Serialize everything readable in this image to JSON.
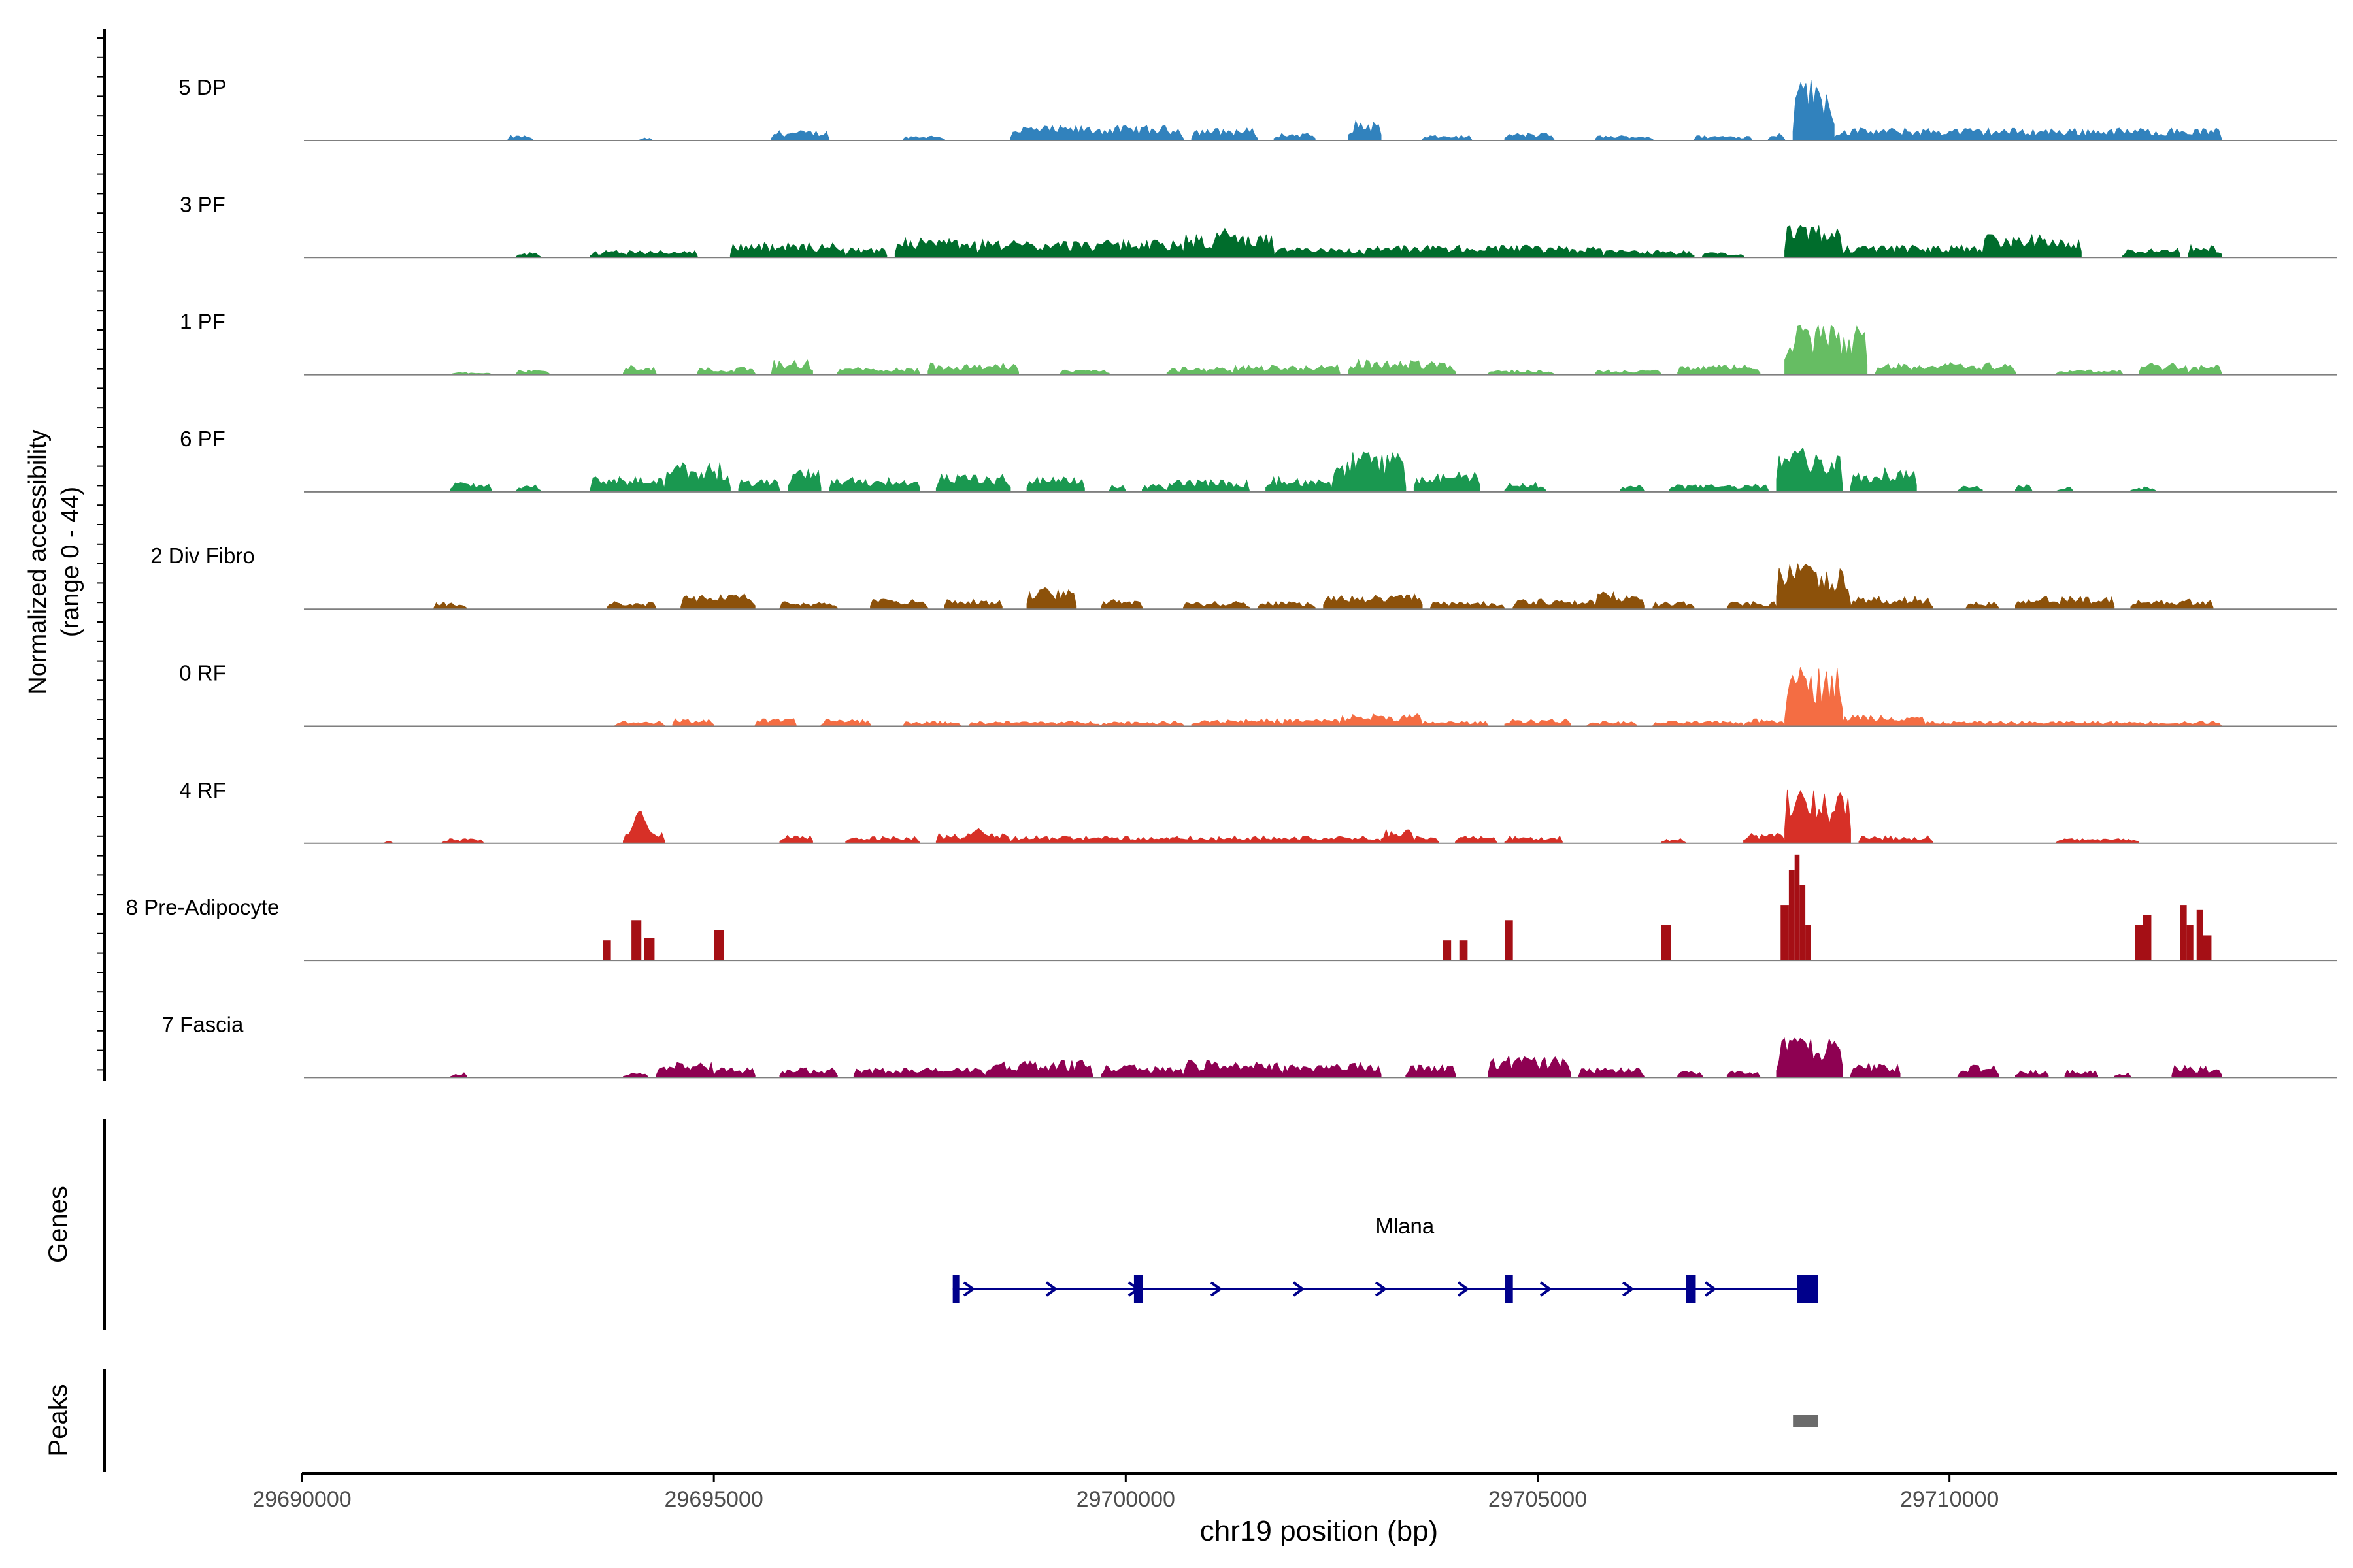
{
  "chart_data": {
    "type": "area",
    "chromosome": "chr19",
    "xlabel": "chr19 position (bp)",
    "xlim": [
      29690000,
      29714700
    ],
    "xticks": [
      29690000,
      29695000,
      29700000,
      29705000,
      29710000
    ],
    "xtick_labels": [
      "29690000",
      "29695000",
      "29700000",
      "29705000",
      "29710000"
    ],
    "coverage": {
      "ylabel_line1": "Normalized accessibility",
      "ylabel_line2": "(range 0 - 44)",
      "yrange": [
        0,
        44
      ],
      "tracks": [
        {
          "name": "5 DP",
          "color": "#3182bd",
          "max": 44,
          "segments": [
            [
              29692500,
              29692800,
              2
            ],
            [
              29694100,
              29694250,
              1
            ],
            [
              29695700,
              29696400,
              4
            ],
            [
              29697300,
              29697800,
              2
            ],
            [
              29698600,
              29700700,
              6
            ],
            [
              29700800,
              29701600,
              5
            ],
            [
              29701800,
              29702300,
              3
            ],
            [
              29702700,
              29703100,
              8
            ],
            [
              29703600,
              29704200,
              2
            ],
            [
              29704600,
              29705200,
              3
            ],
            [
              29705700,
              29706400,
              2
            ],
            [
              29706900,
              29707600,
              2
            ],
            [
              29707800,
              29708000,
              3
            ],
            [
              29708100,
              29708600,
              25
            ],
            [
              29708600,
              29713300,
              5
            ]
          ],
          "peaks": [
            [
              29708200,
              25
            ],
            [
              29703100,
              8
            ]
          ]
        },
        {
          "name": "3 PF",
          "color": "#006d2c",
          "max": 44,
          "segments": [
            [
              29692600,
              29692900,
              2
            ],
            [
              29693500,
              29694800,
              3
            ],
            [
              29695200,
              29696600,
              6
            ],
            [
              29696600,
              29697100,
              4
            ],
            [
              29697200,
              29698200,
              8
            ],
            [
              29698200,
              29700700,
              7
            ],
            [
              29700700,
              29701800,
              10
            ],
            [
              29701800,
              29702900,
              4
            ],
            [
              29702900,
              29705800,
              5
            ],
            [
              29705800,
              29706900,
              3
            ],
            [
              29707000,
              29707500,
              2
            ],
            [
              29708000,
              29708700,
              13
            ],
            [
              29708700,
              29710400,
              5
            ],
            [
              29710400,
              29711600,
              9
            ],
            [
              29712100,
              29712800,
              4
            ],
            [
              29712900,
              29713300,
              5
            ]
          ],
          "peaks": [
            [
              29708200,
              13
            ],
            [
              29701200,
              12
            ],
            [
              29710500,
              11
            ]
          ]
        },
        {
          "name": "1 PF",
          "color": "#66bd63",
          "max": 44,
          "segments": [
            [
              29691800,
              29692300,
              1
            ],
            [
              29692600,
              29693000,
              2
            ],
            [
              29693900,
              29694300,
              4
            ],
            [
              29694800,
              29695500,
              3
            ],
            [
              29695700,
              29696200,
              6
            ],
            [
              29696500,
              29697500,
              3
            ],
            [
              29697600,
              29698700,
              5
            ],
            [
              29699200,
              29699800,
              2
            ],
            [
              29700500,
              29701300,
              3
            ],
            [
              29701300,
              29702600,
              4
            ],
            [
              29702700,
              29704000,
              6
            ],
            [
              29704400,
              29705200,
              2
            ],
            [
              29705700,
              29706500,
              2
            ],
            [
              29706700,
              29707700,
              4
            ],
            [
              29708000,
              29709000,
              20
            ],
            [
              29709100,
              29710800,
              5
            ],
            [
              29711300,
              29712100,
              2
            ],
            [
              29712300,
              29712900,
              5
            ],
            [
              29712900,
              29713300,
              4
            ]
          ],
          "peaks": [
            [
              29708200,
              20
            ],
            [
              29708500,
              9
            ]
          ]
        },
        {
          "name": "6 PF",
          "color": "#1a9850",
          "max": 44,
          "segments": [
            [
              29691800,
              29692300,
              4
            ],
            [
              29692600,
              29692900,
              3
            ],
            [
              29693500,
              29694400,
              6
            ],
            [
              29694400,
              29695200,
              12
            ],
            [
              29695300,
              29695800,
              5
            ],
            [
              29695900,
              29696300,
              9
            ],
            [
              29696400,
              29697500,
              6
            ],
            [
              29697700,
              29698600,
              7
            ],
            [
              29698800,
              29699500,
              6
            ],
            [
              29699800,
              29700000,
              3
            ],
            [
              29700200,
              29700500,
              3
            ],
            [
              29700500,
              29701500,
              5
            ],
            [
              29701700,
              29702500,
              6
            ],
            [
              29702500,
              29703400,
              16
            ],
            [
              29703500,
              29704300,
              8
            ],
            [
              29704600,
              29705100,
              4
            ],
            [
              29706000,
              29706300,
              3
            ],
            [
              29706600,
              29707800,
              3
            ],
            [
              29707900,
              29708700,
              18
            ],
            [
              29708800,
              29709600,
              10
            ],
            [
              29710100,
              29710400,
              3
            ],
            [
              29710800,
              29711000,
              3
            ],
            [
              29711300,
              29711500,
              2
            ],
            [
              29712200,
              29712500,
              2
            ]
          ],
          "peaks": [
            [
              29708200,
              18
            ],
            [
              29702900,
              16
            ]
          ]
        },
        {
          "name": "2 Div Fibro",
          "color": "#8c510a",
          "max": 44,
          "segments": [
            [
              29691600,
              29692000,
              3
            ],
            [
              29693700,
              29694300,
              3
            ],
            [
              29694600,
              29695500,
              6
            ],
            [
              29695800,
              29696500,
              3
            ],
            [
              29696900,
              29697600,
              4
            ],
            [
              29697800,
              29698500,
              4
            ],
            [
              29698800,
              29699400,
              8
            ],
            [
              29699700,
              29700200,
              4
            ],
            [
              29700700,
              29701500,
              3
            ],
            [
              29701600,
              29702300,
              3
            ],
            [
              29702400,
              29703600,
              6
            ],
            [
              29703700,
              29704600,
              3
            ],
            [
              29704700,
              29705700,
              4
            ],
            [
              29705700,
              29706300,
              7
            ],
            [
              29706400,
              29706900,
              3
            ],
            [
              29707300,
              29707900,
              3
            ],
            [
              29707900,
              29708800,
              18
            ],
            [
              29708800,
              29709800,
              5
            ],
            [
              29710200,
              29710600,
              3
            ],
            [
              29710800,
              29712000,
              5
            ],
            [
              29712200,
              29713200,
              4
            ]
          ],
          "peaks": [
            [
              29708200,
              18
            ],
            [
              29705800,
              7
            ],
            [
              29699000,
              9
            ]
          ]
        },
        {
          "name": "0 RF",
          "color": "#f46d43",
          "max": 44,
          "segments": [
            [
              29693800,
              29694400,
              2
            ],
            [
              29694500,
              29695000,
              3
            ],
            [
              29695500,
              29696000,
              3
            ],
            [
              29696300,
              29696900,
              3
            ],
            [
              29697300,
              29698000,
              2
            ],
            [
              29698100,
              29699700,
              2
            ],
            [
              29699700,
              29700700,
              2
            ],
            [
              29700800,
              29701900,
              3
            ],
            [
              29701900,
              29702600,
              3
            ],
            [
              29702600,
              29703600,
              5
            ],
            [
              29703600,
              29704400,
              2
            ],
            [
              29704600,
              29705400,
              3
            ],
            [
              29705600,
              29706200,
              2
            ],
            [
              29706400,
              29707500,
              2
            ],
            [
              29707500,
              29708000,
              3
            ],
            [
              29708000,
              29708700,
              24
            ],
            [
              29708700,
              29709700,
              5
            ],
            [
              29709700,
              29713300,
              2
            ]
          ],
          "peaks": [
            [
              29708200,
              24
            ]
          ]
        },
        {
          "name": "4 RF",
          "color": "#d73027",
          "max": 44,
          "segments": [
            [
              29691000,
              29691100,
              1
            ],
            [
              29691700,
              29692200,
              2
            ],
            [
              29693900,
              29694400,
              5
            ],
            [
              29695800,
              29696200,
              4
            ],
            [
              29696600,
              29697500,
              3
            ],
            [
              29697700,
              29698600,
              4
            ],
            [
              29698600,
              29701100,
              3
            ],
            [
              29701100,
              29703100,
              3
            ],
            [
              29703100,
              29703500,
              6
            ],
            [
              29703500,
              29703800,
              3
            ],
            [
              29704000,
              29704500,
              3
            ],
            [
              29704600,
              29705300,
              3
            ],
            [
              29706500,
              29706800,
              2
            ],
            [
              29707500,
              29708000,
              4
            ],
            [
              29708000,
              29708800,
              22
            ],
            [
              29708900,
              29709800,
              3
            ],
            [
              29711300,
              29712300,
              2
            ]
          ],
          "peaks": [
            [
              29708200,
              22
            ],
            [
              29694100,
              13
            ],
            [
              29698200,
              6
            ]
          ]
        },
        {
          "name": "8 Pre-Adipocyte",
          "color": "#a50f15",
          "max": 44,
          "bars": [
            [
              29693650,
              29693750,
              8
            ],
            [
              29694000,
              29694120,
              16
            ],
            [
              29694150,
              29694280,
              9
            ],
            [
              29695000,
              29695120,
              12
            ],
            [
              29703850,
              29703950,
              8
            ],
            [
              29704050,
              29704150,
              8
            ],
            [
              29704600,
              29704700,
              16
            ],
            [
              29706500,
              29706620,
              14
            ],
            [
              29707950,
              29708050,
              22
            ],
            [
              29708050,
              29708120,
              36
            ],
            [
              29708120,
              29708180,
              42
            ],
            [
              29708180,
              29708250,
              30
            ],
            [
              29708250,
              29708320,
              14
            ],
            [
              29712250,
              29712350,
              14
            ],
            [
              29712350,
              29712450,
              18
            ],
            [
              29712800,
              29712880,
              22
            ],
            [
              29712880,
              29712960,
              14
            ],
            [
              29713000,
              29713080,
              20
            ],
            [
              29713080,
              29713180,
              10
            ]
          ]
        },
        {
          "name": "7 Fascia",
          "color": "#8e0152",
          "max": 44,
          "segments": [
            [
              29691800,
              29692000,
              2
            ],
            [
              29693900,
              29694200,
              2
            ],
            [
              29694300,
              29695000,
              6
            ],
            [
              29695000,
              29695500,
              4
            ],
            [
              29695800,
              29696500,
              4
            ],
            [
              29696700,
              29698300,
              4
            ],
            [
              29698300,
              29699600,
              7
            ],
            [
              29699700,
              29700700,
              5
            ],
            [
              29700700,
              29701900,
              7
            ],
            [
              29701900,
              29703100,
              6
            ],
            [
              29703400,
              29704000,
              5
            ],
            [
              29704400,
              29705400,
              9
            ],
            [
              29705500,
              29706300,
              4
            ],
            [
              29706700,
              29707000,
              3
            ],
            [
              29707300,
              29707700,
              3
            ],
            [
              29707900,
              29708700,
              17
            ],
            [
              29708800,
              29709400,
              6
            ],
            [
              29710100,
              29710600,
              5
            ],
            [
              29710800,
              29711200,
              3
            ],
            [
              29711400,
              29711800,
              3
            ],
            [
              29712000,
              29712200,
              2
            ],
            [
              29712700,
              29713300,
              5
            ]
          ],
          "peaks": [
            [
              29708200,
              17
            ],
            [
              29704900,
              9
            ]
          ]
        }
      ]
    },
    "genes": {
      "ylabel": "Genes",
      "items": [
        {
          "name": "Mlana",
          "strand": "+",
          "start": 29697900,
          "end": 29708400,
          "exons": [
            [
              29697900,
              29697960
            ],
            [
              29700100,
              29700210
            ],
            [
              29704600,
              29704700
            ],
            [
              29706800,
              29706920
            ],
            [
              29708150,
              29708400
            ]
          ]
        }
      ]
    },
    "peaks": {
      "ylabel": "Peaks",
      "regions": [
        [
          29708100,
          29708400
        ]
      ]
    }
  }
}
